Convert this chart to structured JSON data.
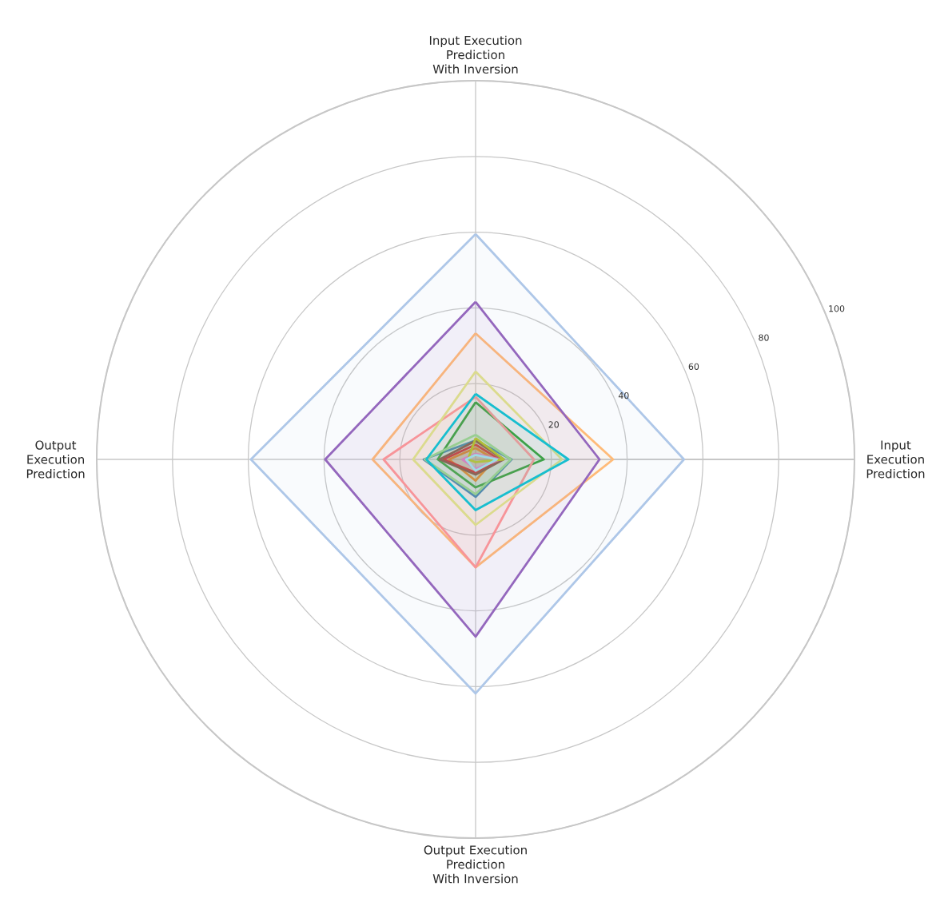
{
  "chart_data": {
    "type": "radar",
    "categories": [
      "Input Execution Prediction With Inversion",
      "Input Execution Prediction",
      "Output Execution Prediction With Inversion",
      "Output Execution Prediction"
    ],
    "series": [
      {
        "color": "#1f77b4",
        "values": [
          5,
          9.5,
          9.9,
          13.7
        ]
      },
      {
        "color": "#aec7e8",
        "values": [
          59.5,
          55,
          61.8,
          59.3
        ]
      },
      {
        "color": "#ff7f0e",
        "values": [
          3,
          5,
          5.6,
          7
        ]
      },
      {
        "color": "#ffbb78",
        "values": [
          33.3,
          36.3,
          28.5,
          27.2
        ]
      },
      {
        "color": "#2ca02c",
        "values": [
          15.1,
          18,
          7.4,
          10
        ]
      },
      {
        "color": "#98df8a",
        "values": [
          6.5,
          9.3,
          9.2,
          13.4
        ]
      },
      {
        "color": "#d62728",
        "values": [
          3.9,
          6.3,
          3.5,
          8.5
        ]
      },
      {
        "color": "#ff9896",
        "values": [
          16.5,
          15.4,
          28.5,
          24.3
        ]
      },
      {
        "color": "#9467bd",
        "values": [
          41.6,
          32.7,
          46.8,
          39.7
        ]
      },
      {
        "color": "#8c564b",
        "values": [
          4.9,
          7.4,
          4,
          9.5
        ]
      },
      {
        "color": "#e377c2",
        "values": [
          1.5,
          6.5,
          2.5,
          3.5
        ]
      },
      {
        "color": "#bcbd22",
        "values": [
          5.6,
          7.4,
          0.7,
          2
        ]
      },
      {
        "color": "#dbdb8d",
        "values": [
          23.2,
          22.8,
          17.3,
          16.5
        ]
      },
      {
        "color": "#17becf",
        "values": [
          17.3,
          24.5,
          13.4,
          13
        ]
      },
      {
        "color": "#9edae5",
        "values": [
          1.2,
          5.6,
          3,
          2.5
        ]
      }
    ],
    "ylim": [
      0,
      100
    ],
    "yticks": [
      20,
      40,
      60,
      80,
      100
    ],
    "grid": true
  }
}
